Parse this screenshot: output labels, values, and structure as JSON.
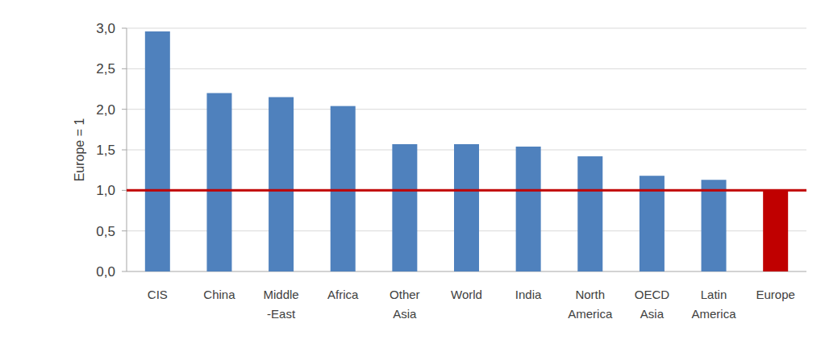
{
  "chart_data": {
    "type": "bar",
    "y_label": "Europe = 1",
    "categories": [
      "CIS",
      "China",
      "Middle-East",
      "Africa",
      "Other Asia",
      "World",
      "India",
      "North America",
      "OECD Asia",
      "Latin America",
      "Europe"
    ],
    "values": [
      2.96,
      2.2,
      2.15,
      2.04,
      1.57,
      1.57,
      1.54,
      1.42,
      1.18,
      1.13,
      1
    ],
    "colors": [
      "#4f81bd",
      "#4f81bd",
      "#4f81bd",
      "#4f81bd",
      "#4f81bd",
      "#4f81bd",
      "#4f81bd",
      "#4f81bd",
      "#4f81bd",
      "#4f81bd",
      "#c00000"
    ],
    "reference_line": 1,
    "ylim": [
      0,
      3
    ],
    "yticks": [
      {
        "value": 0,
        "label": "0,0"
      },
      {
        "value": 0.5,
        "label": "0,5"
      },
      {
        "value": 1,
        "label": "1,0"
      },
      {
        "value": 1.5,
        "label": "1,5"
      },
      {
        "value": 2,
        "label": "2,0"
      },
      {
        "value": 2.5,
        "label": "2,5"
      },
      {
        "value": 3,
        "label": "3,0"
      }
    ],
    "grid": true
  }
}
